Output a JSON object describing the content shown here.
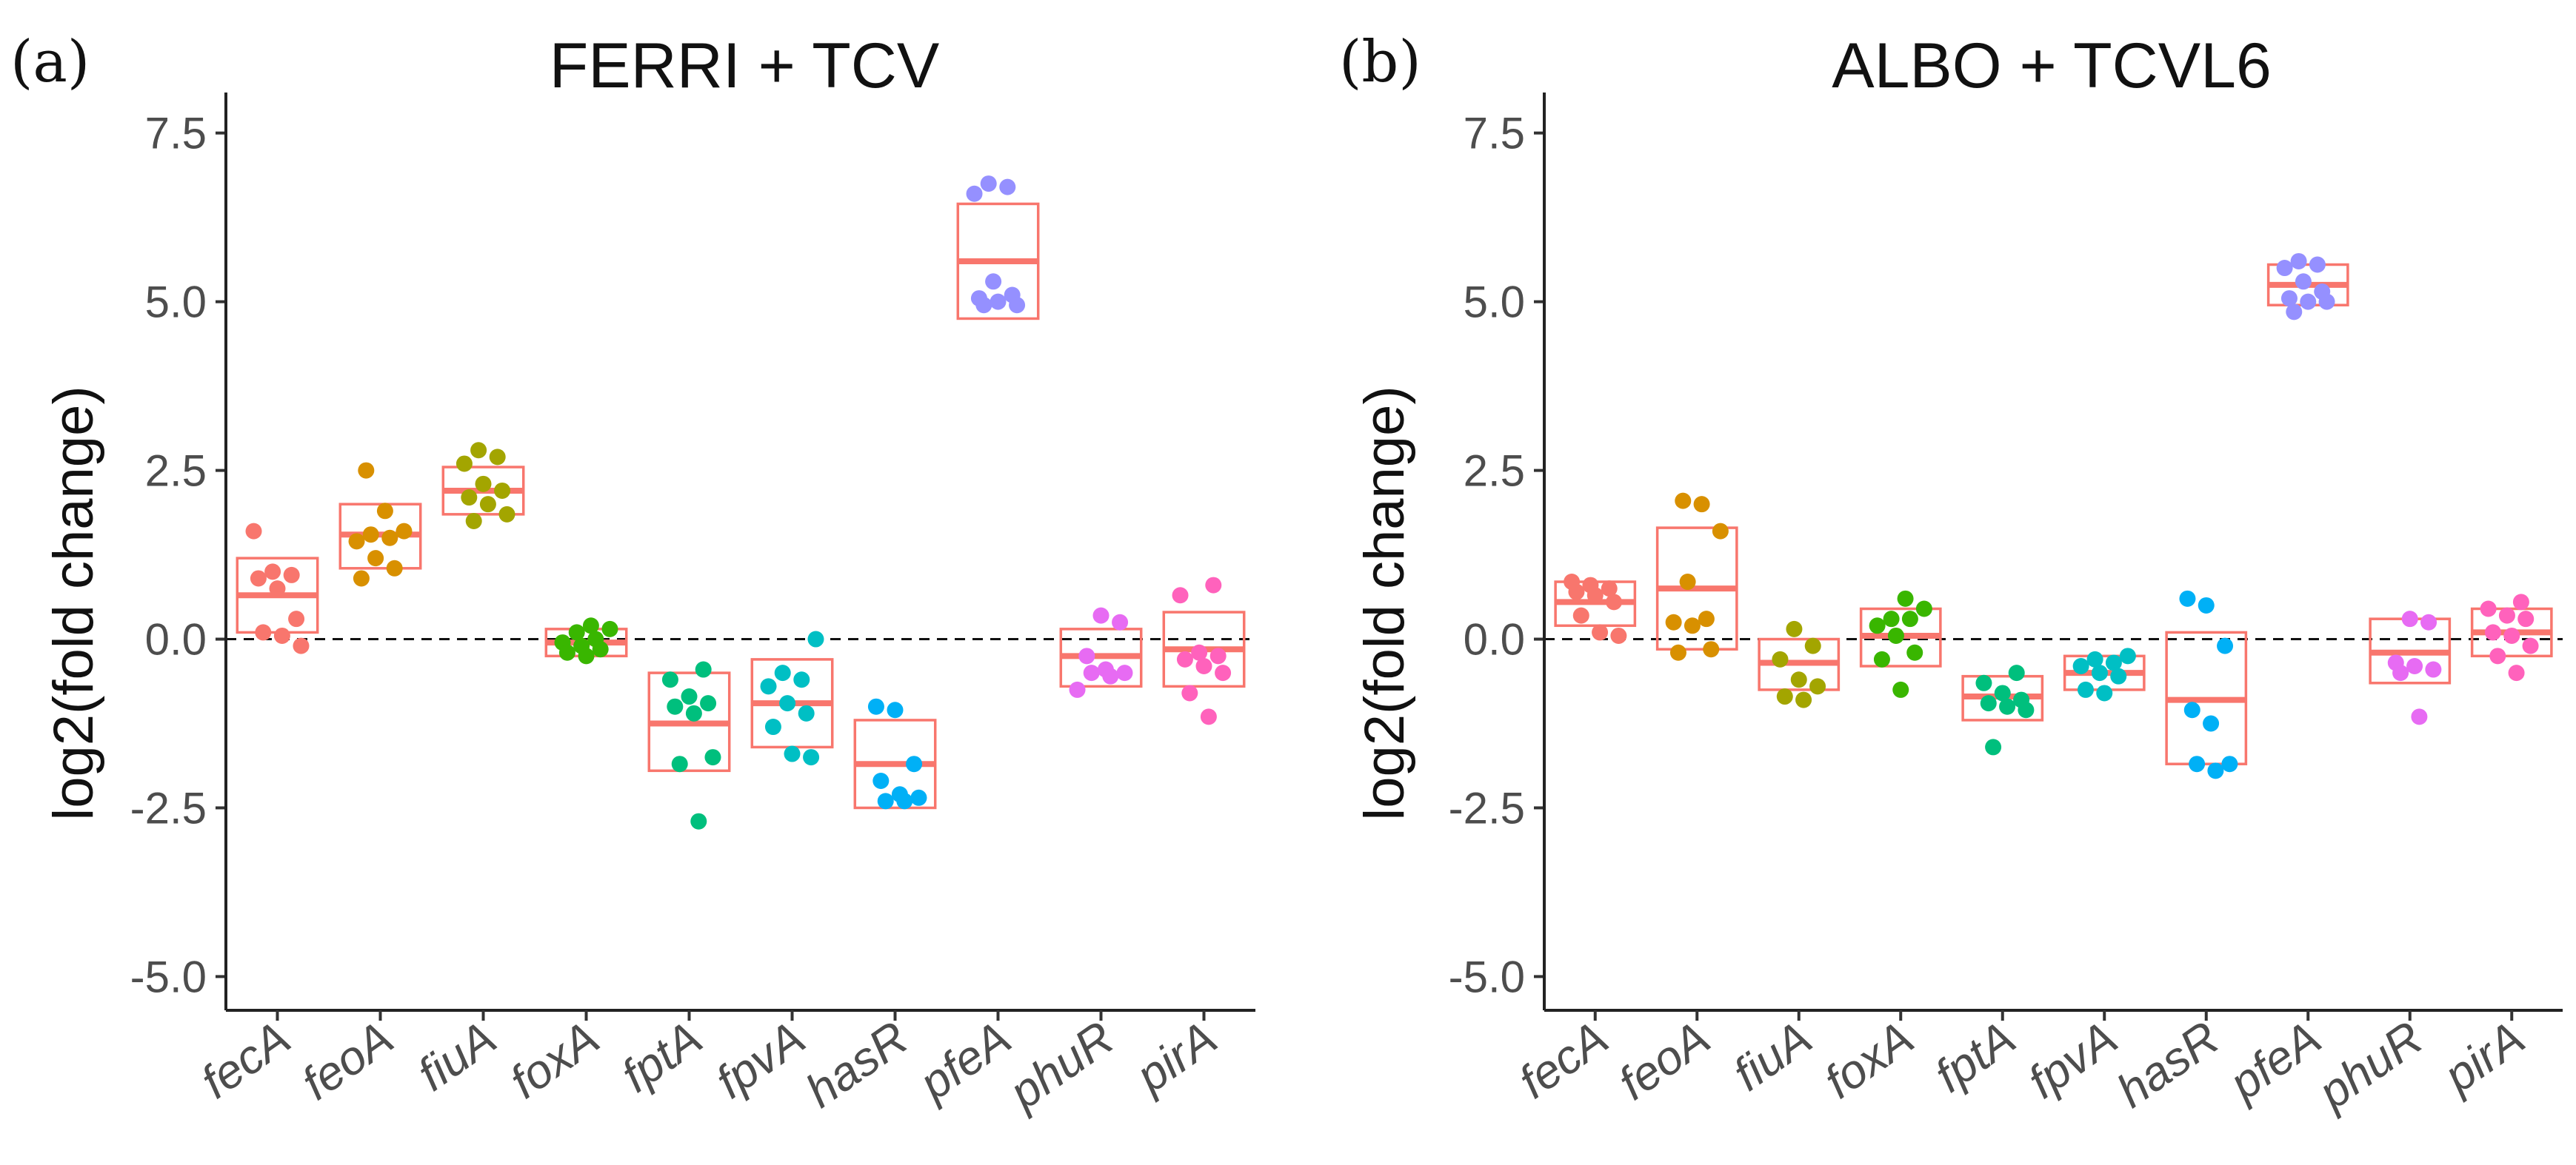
{
  "chart_data": [
    {
      "type": "scatter",
      "panel_label": "(a)",
      "title": "FERRI + TCV",
      "xlabel": "",
      "ylabel": "log2(fold change)",
      "ylim": [
        -5.5,
        8.1
      ],
      "yticks": [
        -5.0,
        -2.5,
        0.0,
        2.5,
        5.0,
        7.5
      ],
      "ytick_labels": [
        "-5.0",
        "-2.5",
        "0.0",
        "2.5",
        "5.0",
        "7.5"
      ],
      "reference_line": 0,
      "categories": [
        "fecA",
        "feoA",
        "fiuA",
        "foxA",
        "fptA",
        "fpvA",
        "hasR",
        "pfeA",
        "phuR",
        "pirA"
      ],
      "colors": [
        "#F8766D",
        "#D89000",
        "#A3A500",
        "#39B600",
        "#00BF7D",
        "#00BFC4",
        "#00B0F6",
        "#9590FF",
        "#E76BF3",
        "#FF62BC"
      ],
      "box_color": "#F8766D",
      "boxes": [
        {
          "low": 0.1,
          "mid": 0.65,
          "high": 1.2
        },
        {
          "low": 1.05,
          "mid": 1.55,
          "high": 2.0
        },
        {
          "low": 1.85,
          "mid": 2.2,
          "high": 2.55
        },
        {
          "low": -0.25,
          "mid": -0.05,
          "high": 0.15
        },
        {
          "low": -1.95,
          "mid": -1.25,
          "high": -0.5
        },
        {
          "low": -1.6,
          "mid": -0.95,
          "high": -0.3
        },
        {
          "low": -2.5,
          "mid": -1.85,
          "high": -1.2
        },
        {
          "low": 4.75,
          "mid": 5.6,
          "high": 6.45
        },
        {
          "low": -0.7,
          "mid": -0.25,
          "high": 0.15
        },
        {
          "low": -0.7,
          "mid": -0.15,
          "high": 0.4
        }
      ],
      "points": [
        [
          1.6,
          1.0,
          0.95,
          0.9,
          0.75,
          0.3,
          0.1,
          0.05,
          -0.1
        ],
        [
          2.5,
          1.9,
          1.6,
          1.55,
          1.5,
          1.45,
          1.2,
          1.05,
          0.9
        ],
        [
          2.8,
          2.7,
          2.6,
          2.3,
          2.2,
          2.1,
          2.0,
          1.85,
          1.75
        ],
        [
          0.2,
          0.15,
          0.1,
          0.0,
          -0.05,
          -0.1,
          -0.15,
          -0.2,
          -0.25
        ],
        [
          -0.45,
          -0.6,
          -0.85,
          -0.95,
          -1.0,
          -1.1,
          -1.75,
          -1.85,
          -2.7
        ],
        [
          0.0,
          -0.5,
          -0.6,
          -0.7,
          -0.95,
          -1.1,
          -1.3,
          -1.7,
          -1.75
        ],
        [
          -1.0,
          -1.05,
          -1.85,
          -2.1,
          -2.3,
          -2.35,
          -2.4,
          -2.4
        ],
        [
          6.75,
          6.7,
          6.6,
          5.3,
          5.1,
          5.05,
          5.0,
          4.95,
          4.95
        ],
        [
          0.35,
          0.25,
          -0.25,
          -0.45,
          -0.5,
          -0.5,
          -0.55,
          -0.75
        ],
        [
          0.8,
          0.65,
          -0.2,
          -0.25,
          -0.3,
          -0.4,
          -0.5,
          -0.8,
          -1.15
        ]
      ]
    },
    {
      "type": "scatter",
      "panel_label": "(b)",
      "title": "ALBO + TCVL6",
      "xlabel": "",
      "ylabel": "log2(fold change)",
      "ylim": [
        -5.5,
        8.1
      ],
      "yticks": [
        -5.0,
        -2.5,
        0.0,
        2.5,
        5.0,
        7.5
      ],
      "ytick_labels": [
        "-5.0",
        "-2.5",
        "0.0",
        "2.5",
        "5.0",
        "7.5"
      ],
      "reference_line": 0,
      "categories": [
        "fecA",
        "feoA",
        "fiuA",
        "foxA",
        "fptA",
        "fpvA",
        "hasR",
        "pfeA",
        "phuR",
        "pirA"
      ],
      "colors": [
        "#F8766D",
        "#D89000",
        "#A3A500",
        "#39B600",
        "#00BF7D",
        "#00BFC4",
        "#00B0F6",
        "#9590FF",
        "#E76BF3",
        "#FF62BC"
      ],
      "box_color": "#F8766D",
      "boxes": [
        {
          "low": 0.2,
          "mid": 0.55,
          "high": 0.85
        },
        {
          "low": -0.15,
          "mid": 0.75,
          "high": 1.65
        },
        {
          "low": -0.75,
          "mid": -0.35,
          "high": 0.0
        },
        {
          "low": -0.4,
          "mid": 0.05,
          "high": 0.45
        },
        {
          "low": -1.2,
          "mid": -0.85,
          "high": -0.55
        },
        {
          "low": -0.75,
          "mid": -0.5,
          "high": -0.25
        },
        {
          "low": -1.85,
          "mid": -0.9,
          "high": 0.1
        },
        {
          "low": 4.95,
          "mid": 5.25,
          "high": 5.55
        },
        {
          "low": -0.65,
          "mid": -0.2,
          "high": 0.3
        },
        {
          "low": -0.25,
          "mid": 0.1,
          "high": 0.45
        }
      ],
      "points": [
        [
          0.85,
          0.8,
          0.75,
          0.7,
          0.65,
          0.55,
          0.35,
          0.1,
          0.05
        ],
        [
          2.05,
          2.0,
          1.6,
          0.85,
          0.3,
          0.25,
          0.2,
          -0.15,
          -0.2
        ],
        [
          0.15,
          -0.1,
          -0.3,
          -0.6,
          -0.7,
          -0.85,
          -0.9
        ],
        [
          0.6,
          0.45,
          0.3,
          0.3,
          0.2,
          0.05,
          -0.2,
          -0.3,
          -0.75
        ],
        [
          -0.5,
          -0.65,
          -0.8,
          -0.9,
          -0.95,
          -1.0,
          -1.05,
          -1.6
        ],
        [
          -0.25,
          -0.3,
          -0.35,
          -0.4,
          -0.5,
          -0.55,
          -0.75,
          -0.8
        ],
        [
          0.6,
          0.5,
          -0.1,
          -1.05,
          -1.25,
          -1.85,
          -1.85,
          -1.95
        ],
        [
          5.6,
          5.55,
          5.5,
          5.3,
          5.15,
          5.05,
          5.0,
          5.0,
          4.85
        ],
        [
          0.3,
          0.25,
          -0.35,
          -0.4,
          -0.45,
          -0.5,
          -1.15
        ],
        [
          0.55,
          0.45,
          0.35,
          0.3,
          0.1,
          0.05,
          -0.1,
          -0.25,
          -0.5
        ]
      ]
    }
  ]
}
